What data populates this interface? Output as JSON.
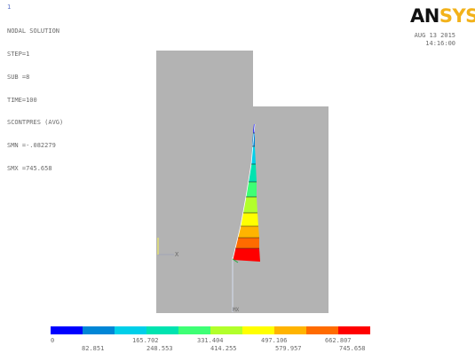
{
  "window_number": "1",
  "result_info": {
    "lines": [
      "NODAL SOLUTION",
      "STEP=1",
      "SUB =8",
      "TIME=100",
      "SCONTPRES (AVG)",
      "SMN =-.082279",
      "SMX =745.658"
    ]
  },
  "timestamp": {
    "date": "AUG 13 2015",
    "time": "14:16:00"
  },
  "logo": {
    "dark": "AN",
    "gold": "SYS",
    "dark_color": "#111111",
    "gold_color": "#f2b21b"
  },
  "triad_label": "X",
  "max_marker": "MX",
  "colors": {
    "model": "#b3b3b3",
    "band": [
      "#0000ff",
      "#0086d6",
      "#00cfe9",
      "#00e3b0",
      "#3eff75",
      "#b2ff2b",
      "#ffff00",
      "#ffb400",
      "#ff6b00",
      "#ff0000"
    ]
  },
  "contour_legend": {
    "upper": [
      "0",
      "165.702",
      "331.404",
      "497.106",
      "662.807"
    ],
    "lower": [
      "82.851",
      "248.553",
      "414.255",
      "579.957",
      "745.658"
    ]
  }
}
